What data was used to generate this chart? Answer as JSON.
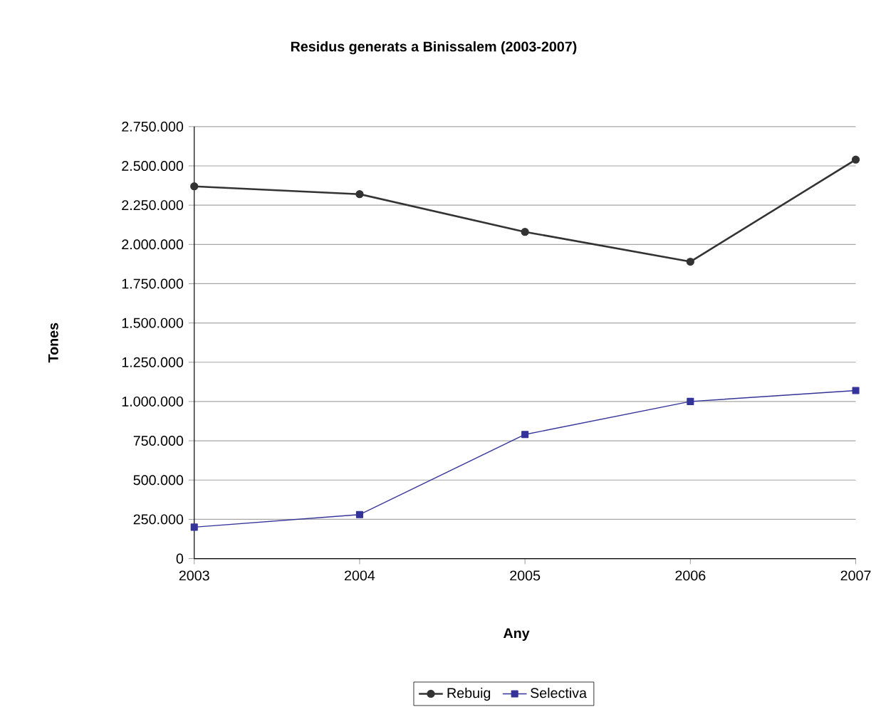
{
  "chart_data": {
    "type": "line",
    "title": "Residus generats a Binissalem (2003-2007)",
    "xlabel": "Any",
    "ylabel": "Tones",
    "x": [
      2003,
      2004,
      2005,
      2006,
      2007
    ],
    "series": [
      {
        "name": "Rebuig",
        "color": "#333333",
        "marker": "circle",
        "values": [
          2370000,
          2320000,
          2080000,
          1890000,
          2540000
        ]
      },
      {
        "name": "Selectiva",
        "color": "#333399",
        "marker": "square",
        "values": [
          200000,
          280000,
          790000,
          1000000,
          1070000
        ]
      }
    ],
    "xlim": [
      2003,
      2007
    ],
    "xticks": [
      2003,
      2004,
      2005,
      2006,
      2007
    ],
    "ylim": [
      0,
      2750000
    ],
    "yticks": [
      0,
      {
        "value": 250000,
        "label": "250.000"
      },
      {
        "value": 500000,
        "label": "500.000"
      },
      {
        "value": 750000,
        "label": "750.000"
      },
      {
        "value": 1000000,
        "label": "1.000.000"
      },
      {
        "value": 1250000,
        "label": "1.250.000"
      },
      {
        "value": 1500000,
        "label": "1.500.000"
      },
      {
        "value": 1750000,
        "label": "1.750.000"
      },
      {
        "value": 2000000,
        "label": "2.000.000"
      },
      {
        "value": 2250000,
        "label": "2.250.000"
      },
      {
        "value": 2500000,
        "label": "2.500.000"
      },
      {
        "value": 2750000,
        "label": "2.750.000"
      }
    ],
    "grid": "y",
    "legend": "bottom",
    "line_style": "solid"
  }
}
